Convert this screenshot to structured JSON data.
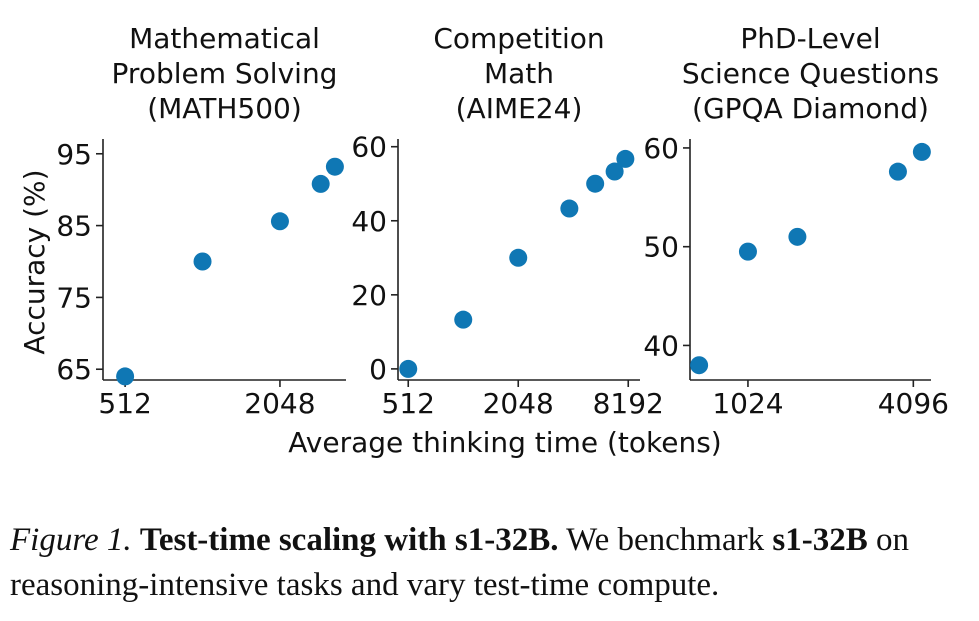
{
  "figure": {
    "shared_xlabel": "Average thinking time (tokens)",
    "shared_ylabel": "Accuracy (%)",
    "marker_color": "#0f77b4"
  },
  "chart_data": [
    {
      "type": "scatter",
      "title_lines": [
        "Mathematical",
        "Problem Solving",
        "(MATH500)"
      ],
      "x_scale": "log2",
      "xlim": [
        420,
        3700
      ],
      "ylim": [
        63.5,
        96.5
      ],
      "xticks": [
        512,
        2048
      ],
      "yticks": [
        65,
        75,
        85,
        95
      ],
      "series": [
        {
          "x": [
            512,
            1024,
            2048,
            2950,
            3350
          ],
          "y": [
            64.0,
            80.0,
            85.6,
            90.8,
            93.2
          ]
        }
      ]
    },
    {
      "type": "scatter",
      "title_lines": [
        "Competition",
        "Math",
        "(AIME24)"
      ],
      "x_scale": "log2",
      "xlim": [
        450,
        9500
      ],
      "ylim": [
        -3,
        61
      ],
      "xticks": [
        512,
        2048,
        8192
      ],
      "yticks": [
        0,
        20,
        40,
        60
      ],
      "series": [
        {
          "x": [
            512,
            1024,
            2048,
            3900,
            5400,
            6900,
            7900
          ],
          "y": [
            0.0,
            13.3,
            30.0,
            43.3,
            50.0,
            53.3,
            56.7
          ]
        }
      ]
    },
    {
      "type": "scatter",
      "title_lines": [
        "PhD-Level",
        "Science Questions",
        "(GPQA Diamond)"
      ],
      "x_scale": "log2",
      "xlim": [
        630,
        4750
      ],
      "ylim": [
        36.5,
        60.5
      ],
      "xticks": [
        1024,
        4096
      ],
      "yticks": [
        40,
        50,
        60
      ],
      "series": [
        {
          "x": [
            680,
            1024,
            1550,
            3600,
            4400
          ],
          "y": [
            38.0,
            49.5,
            51.0,
            57.6,
            59.6
          ]
        }
      ]
    }
  ],
  "caption": {
    "label": "Figure 1.",
    "title": "Test-time scaling with s1-32B.",
    "text_1": "We benchmark",
    "model": "s1-32B",
    "text_2": "on reasoning-intensive tasks and vary test-time compute."
  }
}
